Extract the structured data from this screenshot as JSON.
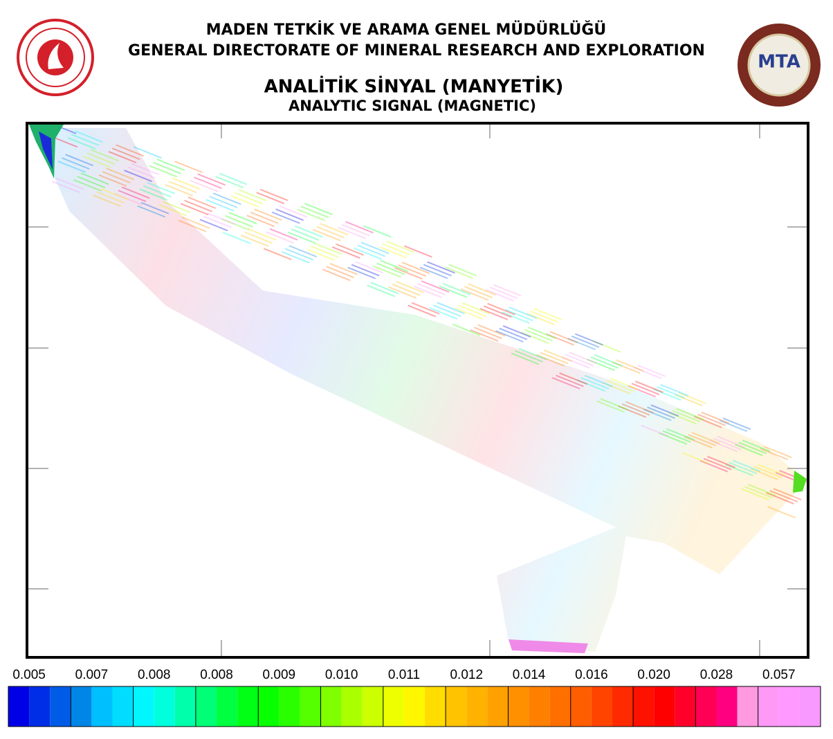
{
  "header": {
    "title_tr": "MADEN TETKİK VE ARAMA GENEL MÜDÜRLÜĞÜ",
    "title_en": "GENERAL DIRECTORATE OF MINERAL RESEARCH AND EXPLORATION",
    "map_title_tr": "ANALİTİK SİNYAL (MANYETİK)",
    "map_title_en": "ANALYTIC SIGNAL (MAGNETIC)"
  },
  "logo_right": {
    "text": "MTA"
  },
  "colorbar": {
    "labels": [
      "0.005",
      "0.007",
      "0.008",
      "0.008",
      "0.009",
      "0.010",
      "0.011",
      "0.012",
      "0.014",
      "0.016",
      "0.020",
      "0.028",
      "0.057"
    ]
  }
}
